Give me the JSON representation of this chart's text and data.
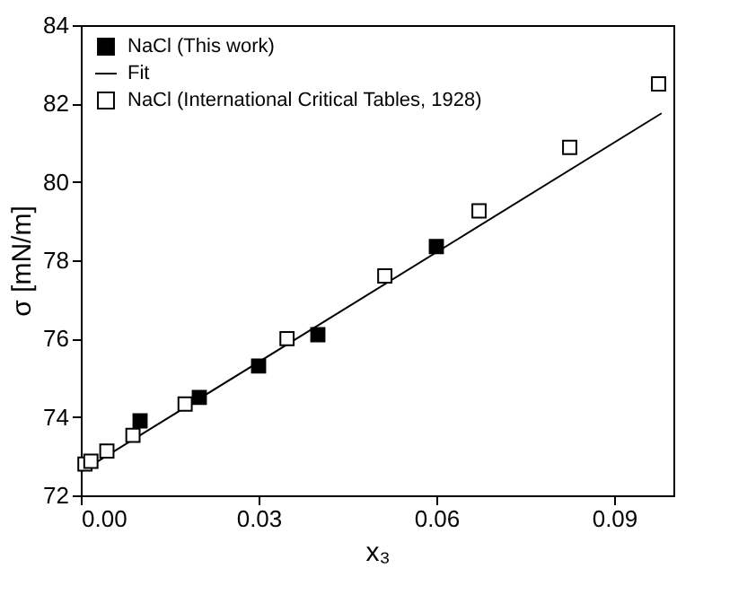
{
  "chart_data": {
    "type": "scatter",
    "xlabel": "x₃",
    "ylabel": "σ [mN/m]",
    "xlim": [
      0,
      0.1
    ],
    "ylim": [
      72,
      84
    ],
    "xticks": [
      {
        "value": 0,
        "label": "0.00"
      },
      {
        "value": 0.03,
        "label": "0.03"
      },
      {
        "value": 0.06,
        "label": "0.06"
      },
      {
        "value": 0.09,
        "label": "0.09"
      }
    ],
    "yticks": [
      72,
      74,
      76,
      78,
      80,
      82,
      84
    ],
    "grid": false,
    "legend": "top left",
    "series": [
      {
        "name": "NaCl (This work)",
        "color": "#000000",
        "marker": "square",
        "x": [
          0.01,
          0.02,
          0.03,
          0.04,
          0.06
        ],
        "values": [
          73.9,
          74.5,
          75.3,
          76.1,
          78.35
        ]
      },
      {
        "name": "Fit",
        "type": "line",
        "color": "#000000",
        "marker": "none",
        "line_style": "solid",
        "x": [
          0,
          0.098
        ],
        "values": [
          72.6,
          81.75
        ]
      },
      {
        "name": "NaCl (International Critical Tables, 1928)",
        "color": "#000000",
        "marker": "square",
        "x": [
          0.0007,
          0.0017,
          0.0044,
          0.0088,
          0.0176,
          0.0348,
          0.0513,
          0.0672,
          0.0825,
          0.0975
        ],
        "values": [
          72.8,
          72.87,
          73.13,
          73.53,
          74.33,
          76.0,
          77.6,
          79.26,
          80.88,
          82.5
        ]
      }
    ]
  }
}
